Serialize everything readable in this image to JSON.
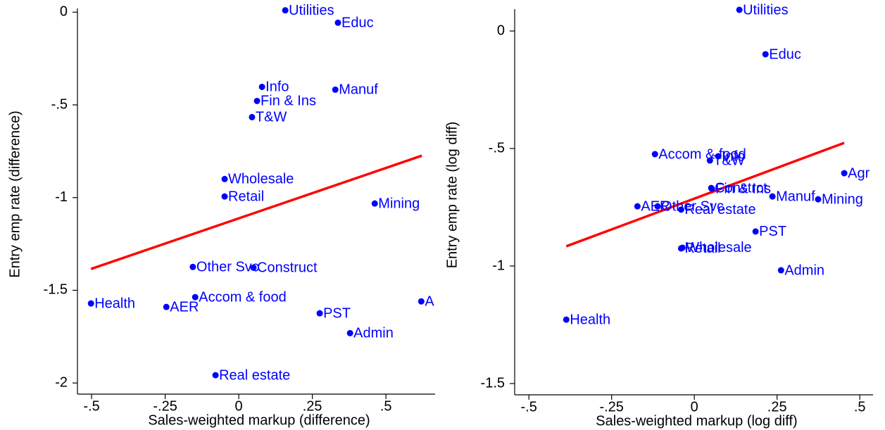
{
  "chart_data": [
    {
      "type": "scatter",
      "color": "#0000ff",
      "fit_color": "#ff0000",
      "x_label": "Sales-weighted markup (difference)",
      "y_label": "Entry emp rate (difference)",
      "xlim": [
        -0.548,
        0.667
      ],
      "ylim": [
        -2.06,
        0.02
      ],
      "xticks": [
        {
          "value": -0.5,
          "label": "-.5"
        },
        {
          "value": -0.25,
          "label": "-.25"
        },
        0,
        {
          "value": 0.25,
          "label": ".25"
        },
        {
          "value": 0.5,
          "label": ".5"
        }
      ],
      "yticks": [
        0,
        {
          "value": -0.5,
          "label": "-.5"
        },
        -1,
        -1.5,
        -2
      ],
      "labels": [
        "Utilities",
        "Educ",
        "Info",
        "Manuf",
        "Fin & Ins",
        "T&W",
        "Wholesale",
        "Retail",
        "Mining",
        "Other Svc",
        "Construct",
        "Accom & food",
        "Health",
        "AER",
        "PST",
        "A",
        "Admin",
        "Real estate"
      ],
      "x": [
        0.158,
        0.337,
        0.079,
        0.328,
        0.062,
        0.045,
        -0.048,
        -0.048,
        0.462,
        -0.156,
        0.05,
        -0.148,
        -0.502,
        -0.246,
        0.275,
        0.62,
        0.378,
        -0.079
      ],
      "values": [
        0.01,
        -0.057,
        -0.403,
        -0.418,
        -0.479,
        -0.566,
        -0.9,
        -0.994,
        -1.032,
        -1.374,
        -1.378,
        -1.537,
        -1.571,
        -1.59,
        -1.624,
        -1.56,
        -1.731,
        -1.958
      ],
      "fit": {
        "x": [
          -0.502,
          0.622
        ],
        "values": [
          -1.385,
          -0.774
        ]
      }
    },
    {
      "type": "scatter",
      "color": "#0000ff",
      "fit_color": "#ff0000",
      "x_label": "Sales-weighted markup (log diff)",
      "y_label": "Entry emp rate (log diff)",
      "xlim": [
        -0.543,
        0.54
      ],
      "ylim": [
        -1.548,
        0.093
      ],
      "xticks": [
        {
          "value": -0.5,
          "label": "-.5"
        },
        {
          "value": -0.25,
          "label": "-.25"
        },
        0,
        {
          "value": 0.25,
          "label": ".25"
        },
        {
          "value": 0.5,
          "label": ".5"
        }
      ],
      "yticks": [
        0,
        {
          "value": -0.5,
          "label": "-.5"
        },
        -1,
        -1.5
      ],
      "labels": [
        "Utilities",
        "Educ",
        "Accom & food",
        "Info",
        "T&W",
        "Agr",
        "Constrct",
        "Fin & Ins",
        "Manuf",
        "Mining",
        "AER",
        "Other Svc",
        "Real estate",
        "PST",
        "Retail",
        "Wholesale",
        "Admin",
        "Health"
      ],
      "x": [
        0.136,
        0.215,
        -0.119,
        0.072,
        0.047,
        0.453,
        0.051,
        0.053,
        0.236,
        0.374,
        -0.172,
        -0.111,
        -0.04,
        0.185,
        -0.04,
        -0.036,
        0.262,
        -0.387
      ],
      "values": [
        0.09,
        -0.099,
        -0.524,
        -0.533,
        -0.551,
        -0.605,
        -0.668,
        -0.671,
        -0.704,
        -0.716,
        -0.746,
        -0.746,
        -0.76,
        -0.853,
        -0.925,
        -0.922,
        -1.018,
        -1.228
      ],
      "fit": {
        "x": [
          -0.387,
          0.453
        ],
        "values": [
          -0.916,
          -0.476
        ]
      }
    }
  ]
}
